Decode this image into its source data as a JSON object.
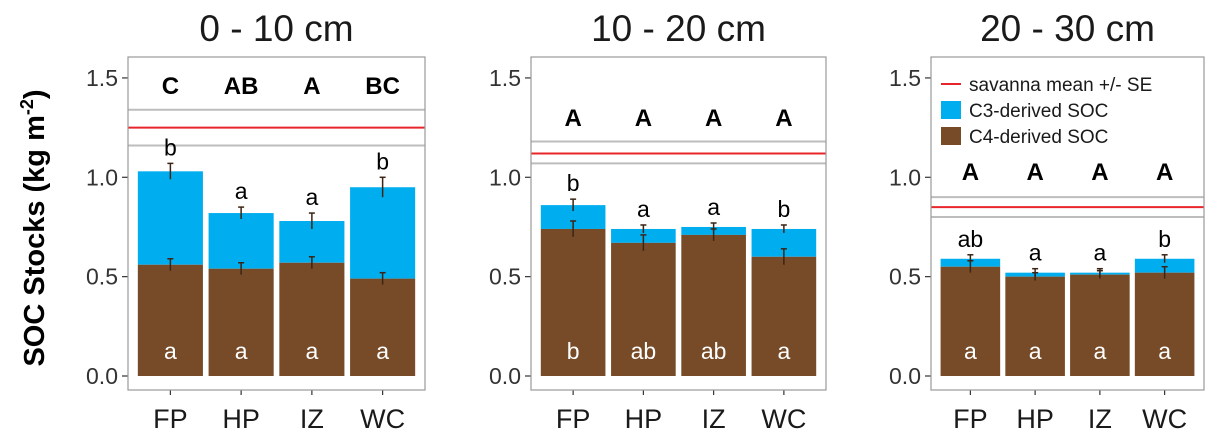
{
  "figure": {
    "ylabel": "SOC Stocks (kg m",
    "ylabel_sup": "-2",
    "ylabel_close": ")"
  },
  "colors": {
    "c3": "#00aeef",
    "c4": "#774b28",
    "savanna_mean": "#e8252a",
    "savanna_se": "#bdbdbd",
    "panel_border": "#9a9a9a"
  },
  "legend": {
    "items": [
      {
        "label": "savanna mean +/- SE",
        "kind": "line"
      },
      {
        "label": "C3-derived SOC",
        "kind": "c3"
      },
      {
        "label": "C4-derived SOC",
        "kind": "c4"
      }
    ]
  },
  "chart_data": [
    {
      "type": "bar",
      "stacked": true,
      "title": "0 - 10 cm",
      "categories": [
        "FP",
        "HP",
        "IZ",
        "WC"
      ],
      "ylim": [
        0,
        1.55
      ],
      "yticks": [
        "0.0",
        "0.5",
        "1.0",
        "1.5"
      ],
      "series": [
        {
          "name": "C4-derived SOC",
          "values": [
            0.56,
            0.54,
            0.57,
            0.49
          ],
          "errors": [
            0.03,
            0.03,
            0.03,
            0.03
          ]
        },
        {
          "name": "C3-derived SOC",
          "values": [
            0.47,
            0.28,
            0.21,
            0.46
          ]
        }
      ],
      "total_errors": [
        0.04,
        0.03,
        0.04,
        0.05
      ],
      "savanna": {
        "mean": 1.25,
        "se_low": 1.16,
        "se_high": 1.34
      },
      "letters_top": [
        "C",
        "AB",
        "A",
        "BC"
      ],
      "letters_total": [
        "b",
        "a",
        "a",
        "b"
      ],
      "letters_c4": [
        "a",
        "a",
        "a",
        "a"
      ]
    },
    {
      "type": "bar",
      "stacked": true,
      "title": "10 - 20 cm",
      "categories": [
        "FP",
        "HP",
        "IZ",
        "WC"
      ],
      "ylim": [
        0,
        1.55
      ],
      "yticks": [
        "0.0",
        "0.5",
        "1.0",
        "1.5"
      ],
      "series": [
        {
          "name": "C4-derived SOC",
          "values": [
            0.74,
            0.67,
            0.71,
            0.6
          ],
          "errors": [
            0.04,
            0.04,
            0.03,
            0.04
          ]
        },
        {
          "name": "C3-derived SOC",
          "values": [
            0.12,
            0.07,
            0.04,
            0.14
          ]
        }
      ],
      "total_errors": [
        0.03,
        0.02,
        0.02,
        0.02
      ],
      "savanna": {
        "mean": 1.12,
        "se_low": 1.07,
        "se_high": 1.18
      },
      "letters_top": [
        "A",
        "A",
        "A",
        "A"
      ],
      "letters_total": [
        "b",
        "a",
        "a",
        "b"
      ],
      "letters_c4": [
        "b",
        "ab",
        "ab",
        "a"
      ]
    },
    {
      "type": "bar",
      "stacked": true,
      "title": "20 - 30 cm",
      "categories": [
        "FP",
        "HP",
        "IZ",
        "WC"
      ],
      "ylim": [
        0,
        1.55
      ],
      "yticks": [
        "0.0",
        "0.5",
        "1.0",
        "1.5"
      ],
      "series": [
        {
          "name": "C4-derived SOC",
          "values": [
            0.55,
            0.5,
            0.51,
            0.52
          ],
          "errors": [
            0.03,
            0.02,
            0.02,
            0.03
          ]
        },
        {
          "name": "C3-derived SOC",
          "values": [
            0.04,
            0.02,
            0.01,
            0.07
          ]
        }
      ],
      "total_errors": [
        0.02,
        0.02,
        0.02,
        0.02
      ],
      "savanna": {
        "mean": 0.85,
        "se_low": 0.8,
        "se_high": 0.9
      },
      "letters_top": [
        "A",
        "A",
        "A",
        "A"
      ],
      "letters_total": [
        "ab",
        "a",
        "a",
        "b"
      ],
      "letters_c4": [
        "a",
        "a",
        "a",
        "a"
      ],
      "show_legend": true
    }
  ]
}
